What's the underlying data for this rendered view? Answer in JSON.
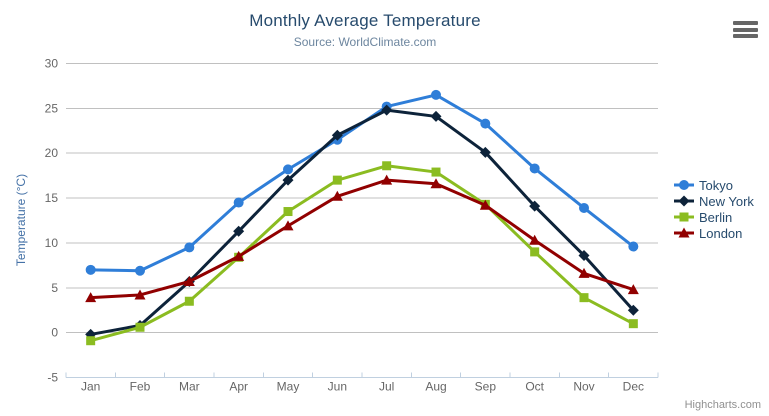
{
  "header": {
    "title": "Monthly Average Temperature",
    "subtitle": "Source: WorldClimate.com"
  },
  "icons": {
    "export_menu": "hamburger-menu-icon"
  },
  "credit": {
    "label": "Highcharts.com"
  },
  "chart_data": {
    "type": "line",
    "title": "Monthly Average Temperature",
    "subtitle": "Source: WorldClimate.com",
    "categories": [
      "Jan",
      "Feb",
      "Mar",
      "Apr",
      "May",
      "Jun",
      "Jul",
      "Aug",
      "Sep",
      "Oct",
      "Nov",
      "Dec"
    ],
    "xlabel": "",
    "ylabel": "Temperature (°C)",
    "ylim": [
      -5,
      30
    ],
    "yticks": [
      -5,
      0,
      5,
      10,
      15,
      20,
      25,
      30
    ],
    "grid": true,
    "legend_position": "right",
    "gridline_color": "#C0C0C0",
    "axis_line_color": "#C0D0E0",
    "axis_label_color": "#666666",
    "series": [
      {
        "name": "Tokyo",
        "color": "#2f7ed8",
        "marker": "circle",
        "values": [
          7.0,
          6.9,
          9.5,
          14.5,
          18.2,
          21.5,
          25.2,
          26.5,
          23.3,
          18.3,
          13.9,
          9.6
        ]
      },
      {
        "name": "New York",
        "color": "#0d233a",
        "marker": "diamond",
        "values": [
          -0.2,
          0.8,
          5.7,
          11.3,
          17.0,
          22.0,
          24.8,
          24.1,
          20.1,
          14.1,
          8.6,
          2.5
        ]
      },
      {
        "name": "Berlin",
        "color": "#8bbc21",
        "marker": "square",
        "values": [
          -0.9,
          0.6,
          3.5,
          8.4,
          13.5,
          17.0,
          18.6,
          17.9,
          14.3,
          9.0,
          3.9,
          1.0
        ]
      },
      {
        "name": "London",
        "color": "#910000",
        "marker": "triangle",
        "values": [
          3.9,
          4.2,
          5.7,
          8.5,
          11.9,
          15.2,
          17.0,
          16.6,
          14.2,
          10.3,
          6.6,
          4.8
        ]
      }
    ]
  }
}
